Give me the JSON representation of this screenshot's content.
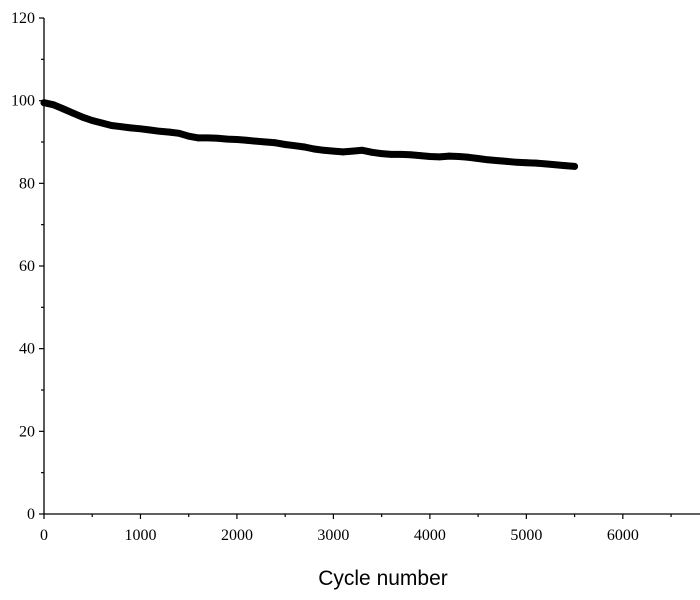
{
  "chart_data": {
    "type": "line",
    "title": "",
    "xlabel": "Cycle number",
    "ylabel": "",
    "xlim": [
      0,
      6800
    ],
    "ylim": [
      0,
      120
    ],
    "x_ticks": [
      0,
      1000,
      2000,
      3000,
      4000,
      5000,
      6000
    ],
    "x_tick_labels": [
      "0",
      "1000",
      "2000",
      "3000",
      "4000",
      "5000",
      "6000"
    ],
    "y_ticks": [
      0,
      20,
      40,
      60,
      80,
      100,
      120
    ],
    "y_tick_labels": [
      "0",
      "20",
      "40",
      "60",
      "80",
      "100",
      "120"
    ],
    "grid": false,
    "legend": "none",
    "series": [
      {
        "color": "#000000",
        "x": [
          0,
          100,
          200,
          300,
          400,
          500,
          600,
          700,
          800,
          900,
          1000,
          1100,
          1200,
          1300,
          1400,
          1500,
          1600,
          1700,
          1800,
          1900,
          2000,
          2100,
          2200,
          2300,
          2400,
          2500,
          2600,
          2700,
          2800,
          2900,
          3000,
          3100,
          3200,
          3300,
          3400,
          3500,
          3600,
          3700,
          3800,
          3900,
          4000,
          4100,
          4200,
          4300,
          4400,
          4500,
          4600,
          4700,
          4800,
          4900,
          5000,
          5100,
          5200,
          5300,
          5400,
          5500
        ],
        "values": [
          99.5,
          99.0,
          98.0,
          97.0,
          96.0,
          95.2,
          94.6,
          94.0,
          93.7,
          93.4,
          93.2,
          92.9,
          92.6,
          92.4,
          92.1,
          91.4,
          91.0,
          91.0,
          90.9,
          90.7,
          90.6,
          90.4,
          90.2,
          90.0,
          89.8,
          89.4,
          89.1,
          88.8,
          88.3,
          88.0,
          87.8,
          87.6,
          87.8,
          88.0,
          87.5,
          87.2,
          87.0,
          87.0,
          86.9,
          86.7,
          86.5,
          86.4,
          86.6,
          86.5,
          86.3,
          86.0,
          85.7,
          85.5,
          85.3,
          85.1,
          85.0,
          84.9,
          84.7,
          84.5,
          84.3,
          84.1
        ]
      }
    ]
  }
}
